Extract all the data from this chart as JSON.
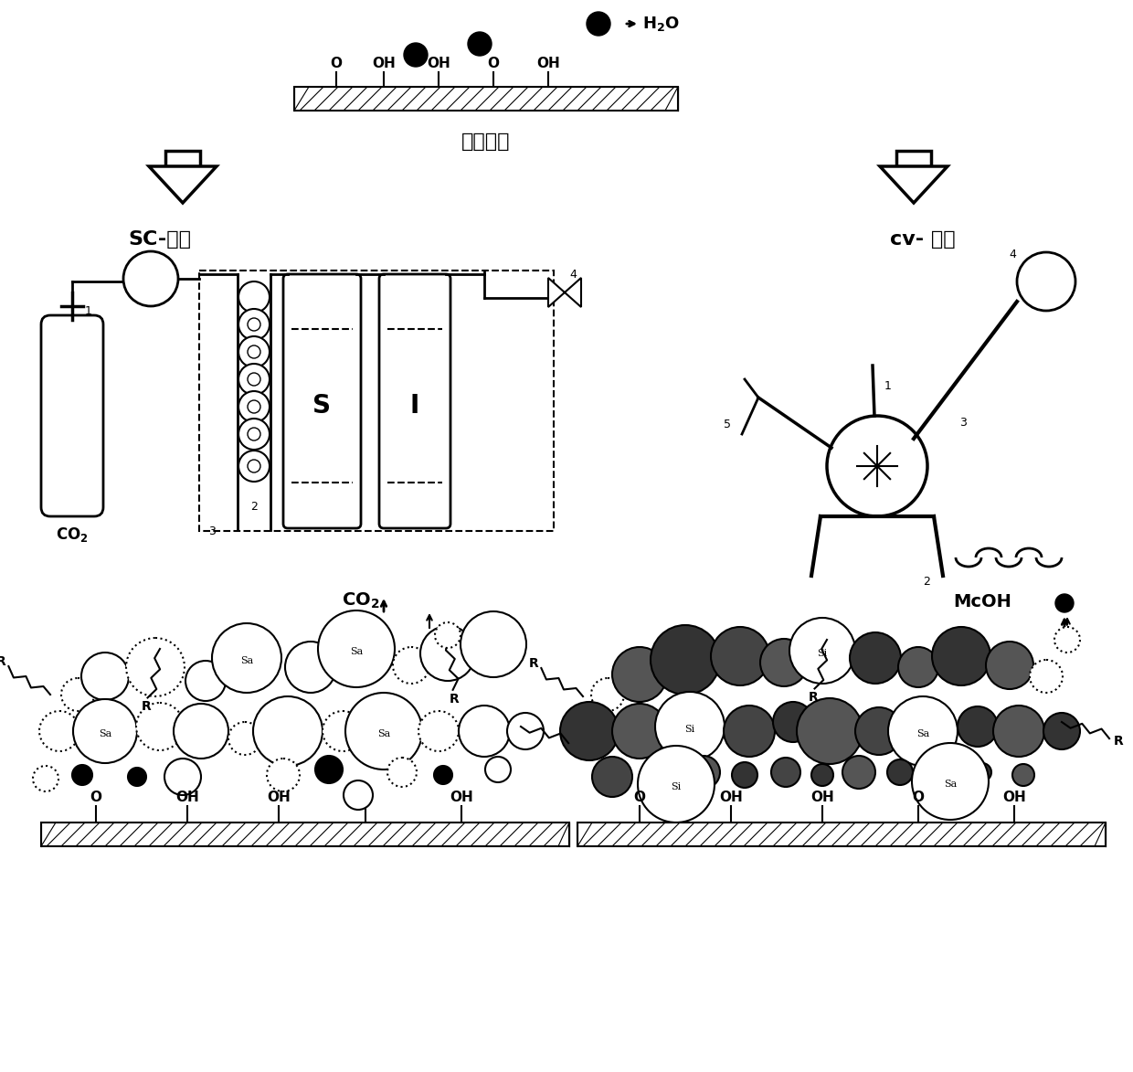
{
  "bg_color": "#ffffff",
  "black": "#000000",
  "label_organic": "有机基质",
  "label_sc": "SC-方法",
  "label_cv": "cv- 方法",
  "label_co2": "CO₂",
  "label_h2o": "H₂O",
  "label_mcoh": "McOH",
  "bottom_labels": [
    "O",
    "OH",
    "OH",
    "O",
    "OH"
  ],
  "top_surface_labels": [
    "O",
    "OH",
    "OH",
    "O",
    "OH"
  ],
  "figsize": [
    12.4,
    11.73
  ],
  "dpi": 100
}
